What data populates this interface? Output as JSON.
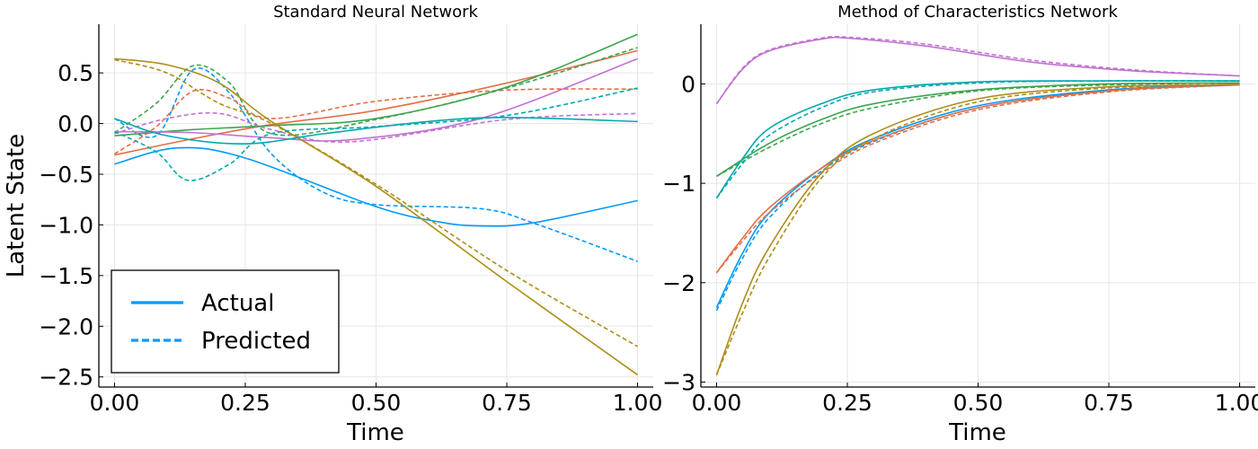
{
  "chart_data": [
    {
      "type": "line",
      "title": "Standard Neural Network",
      "xlabel": "Time",
      "ylabel": "Latent State",
      "xlim": [
        -0.03,
        1.03
      ],
      "ylim": [
        -2.6,
        0.98
      ],
      "xticks": [
        0,
        0.25,
        0.5,
        0.75,
        1.0
      ],
      "xtick_labels": [
        "0.00",
        "0.25",
        "0.50",
        "0.75",
        "1.00"
      ],
      "yticks": [
        -2.5,
        -2.0,
        -1.5,
        -1.0,
        -0.5,
        0.0,
        0.5
      ],
      "ytick_labels": [
        "−2.5",
        "−2.0",
        "−1.5",
        "−1.0",
        "−0.5",
        "0.0",
        "0.5"
      ],
      "grid": true,
      "legend": {
        "position": "bottom-left",
        "entries": [
          {
            "label": "Actual",
            "style": "solid"
          },
          {
            "label": "Predicted",
            "style": "dashed"
          }
        ]
      },
      "series": [
        {
          "color": "#009AFA",
          "actual": [
            [
              0,
              -0.4
            ],
            [
              0.12,
              -0.24
            ],
            [
              0.25,
              -0.34
            ],
            [
              0.5,
              -0.82
            ],
            [
              0.62,
              -0.97
            ],
            [
              0.7,
              -1.01
            ],
            [
              0.8,
              -0.98
            ],
            [
              1.0,
              -0.76
            ]
          ],
          "predicted": [
            [
              0,
              0.05
            ],
            [
              0.08,
              -0.12
            ],
            [
              0.15,
              0.53
            ],
            [
              0.22,
              0.3
            ],
            [
              0.3,
              -0.3
            ],
            [
              0.4,
              -0.68
            ],
            [
              0.5,
              -0.8
            ],
            [
              0.7,
              -0.84
            ],
            [
              0.8,
              -0.98
            ],
            [
              1.0,
              -1.36
            ]
          ]
        },
        {
          "color": "#E36F47",
          "actual": [
            [
              0,
              -0.31
            ],
            [
              0.15,
              -0.15
            ],
            [
              0.3,
              -0.01
            ],
            [
              0.5,
              0.13
            ],
            [
              0.75,
              0.4
            ],
            [
              1.0,
              0.72
            ]
          ],
          "predicted": [
            [
              0,
              -0.3
            ],
            [
              0.08,
              -0.03
            ],
            [
              0.15,
              0.32
            ],
            [
              0.22,
              0.25
            ],
            [
              0.3,
              0.05
            ],
            [
              0.5,
              0.22
            ],
            [
              0.75,
              0.33
            ],
            [
              1.0,
              0.34
            ]
          ]
        },
        {
          "color": "#3DA44D",
          "actual": [
            [
              0,
              -0.12
            ],
            [
              0.15,
              -0.06
            ],
            [
              0.3,
              -0.02
            ],
            [
              0.5,
              0.05
            ],
            [
              0.75,
              0.36
            ],
            [
              1.0,
              0.88
            ]
          ],
          "predicted": [
            [
              0,
              -0.09
            ],
            [
              0.08,
              0.2
            ],
            [
              0.15,
              0.57
            ],
            [
              0.22,
              0.4
            ],
            [
              0.3,
              -0.1
            ],
            [
              0.5,
              0.04
            ],
            [
              0.75,
              0.35
            ],
            [
              1.0,
              0.75
            ]
          ]
        },
        {
          "color": "#C271D2",
          "actual": [
            [
              0,
              -0.08
            ],
            [
              0.15,
              -0.09
            ],
            [
              0.3,
              -0.14
            ],
            [
              0.45,
              -0.16
            ],
            [
              0.7,
              0.05
            ],
            [
              1.0,
              0.64
            ]
          ],
          "predicted": [
            [
              0,
              -0.1
            ],
            [
              0.1,
              0.05
            ],
            [
              0.2,
              0.1
            ],
            [
              0.3,
              -0.06
            ],
            [
              0.45,
              -0.18
            ],
            [
              0.75,
              0.04
            ],
            [
              1.0,
              0.1
            ]
          ]
        },
        {
          "color": "#AC8E18",
          "actual": [
            [
              0,
              0.64
            ],
            [
              0.1,
              0.58
            ],
            [
              0.2,
              0.4
            ],
            [
              0.3,
              0.02
            ],
            [
              0.5,
              -0.62
            ],
            [
              0.75,
              -1.56
            ],
            [
              1.0,
              -2.48
            ]
          ],
          "predicted": [
            [
              0,
              0.63
            ],
            [
              0.1,
              0.5
            ],
            [
              0.2,
              0.2
            ],
            [
              0.3,
              0.0
            ],
            [
              0.5,
              -0.6
            ],
            [
              0.75,
              -1.45
            ],
            [
              1.0,
              -2.2
            ]
          ]
        },
        {
          "color": "#00A9AD",
          "actual": [
            [
              0,
              0.05
            ],
            [
              0.1,
              -0.12
            ],
            [
              0.25,
              -0.2
            ],
            [
              0.4,
              -0.1
            ],
            [
              0.6,
              0.02
            ],
            [
              0.75,
              0.06
            ],
            [
              1.0,
              0.02
            ]
          ],
          "predicted": [
            [
              0,
              -0.08
            ],
            [
              0.08,
              -0.28
            ],
            [
              0.14,
              -0.56
            ],
            [
              0.22,
              -0.4
            ],
            [
              0.3,
              -0.1
            ],
            [
              0.5,
              -0.03
            ],
            [
              0.75,
              0.08
            ],
            [
              1.0,
              0.35
            ]
          ]
        }
      ]
    },
    {
      "type": "line",
      "title": "Method of Characteristics Network",
      "xlabel": "Time",
      "ylabel": "",
      "xlim": [
        -0.03,
        1.03
      ],
      "ylim": [
        -3.05,
        0.6
      ],
      "xticks": [
        0,
        0.25,
        0.5,
        0.75,
        1.0
      ],
      "xtick_labels": [
        "0.00",
        "0.25",
        "0.50",
        "0.75",
        "1.00"
      ],
      "yticks": [
        -3,
        -2,
        -1,
        0
      ],
      "ytick_labels": [
        "−3",
        "−2",
        "−1",
        "0"
      ],
      "grid": true,
      "series": [
        {
          "color": "#009AFA",
          "actual": [
            [
              0,
              -2.25
            ],
            [
              0.05,
              -1.7
            ],
            [
              0.1,
              -1.3
            ],
            [
              0.2,
              -0.85
            ],
            [
              0.3,
              -0.55
            ],
            [
              0.5,
              -0.22
            ],
            [
              0.75,
              -0.06
            ],
            [
              1.0,
              0.0
            ]
          ],
          "predicted": [
            [
              0,
              -2.28
            ],
            [
              0.05,
              -1.75
            ],
            [
              0.1,
              -1.35
            ],
            [
              0.2,
              -0.88
            ],
            [
              0.3,
              -0.58
            ],
            [
              0.5,
              -0.24
            ],
            [
              0.75,
              -0.07
            ],
            [
              1.0,
              -0.01
            ]
          ]
        },
        {
          "color": "#E36F47",
          "actual": [
            [
              0,
              -1.9
            ],
            [
              0.05,
              -1.55
            ],
            [
              0.1,
              -1.25
            ],
            [
              0.2,
              -0.85
            ],
            [
              0.3,
              -0.57
            ],
            [
              0.5,
              -0.24
            ],
            [
              0.75,
              -0.07
            ],
            [
              1.0,
              0.0
            ]
          ],
          "predicted": [
            [
              0,
              -1.9
            ],
            [
              0.05,
              -1.58
            ],
            [
              0.1,
              -1.3
            ],
            [
              0.2,
              -0.9
            ],
            [
              0.3,
              -0.6
            ],
            [
              0.5,
              -0.26
            ],
            [
              0.75,
              -0.08
            ],
            [
              1.0,
              -0.01
            ]
          ]
        },
        {
          "color": "#3DA44D",
          "actual": [
            [
              0,
              -0.93
            ],
            [
              0.1,
              -0.6
            ],
            [
              0.2,
              -0.36
            ],
            [
              0.3,
              -0.2
            ],
            [
              0.5,
              -0.06
            ],
            [
              0.75,
              0.0
            ],
            [
              1.0,
              0.01
            ]
          ],
          "predicted": [
            [
              0,
              -0.93
            ],
            [
              0.1,
              -0.64
            ],
            [
              0.2,
              -0.4
            ],
            [
              0.3,
              -0.24
            ],
            [
              0.5,
              -0.07
            ],
            [
              0.75,
              -0.01
            ],
            [
              1.0,
              0.01
            ]
          ]
        },
        {
          "color": "#C271D2",
          "actual": [
            [
              0,
              -0.2
            ],
            [
              0.05,
              0.15
            ],
            [
              0.1,
              0.33
            ],
            [
              0.2,
              0.45
            ],
            [
              0.25,
              0.46
            ],
            [
              0.4,
              0.38
            ],
            [
              0.6,
              0.22
            ],
            [
              0.8,
              0.13
            ],
            [
              1.0,
              0.08
            ]
          ],
          "predicted": [
            [
              0,
              -0.2
            ],
            [
              0.05,
              0.16
            ],
            [
              0.1,
              0.34
            ],
            [
              0.2,
              0.46
            ],
            [
              0.25,
              0.47
            ],
            [
              0.4,
              0.4
            ],
            [
              0.6,
              0.24
            ],
            [
              0.8,
              0.14
            ],
            [
              1.0,
              0.08
            ]
          ]
        },
        {
          "color": "#AC8E18",
          "actual": [
            [
              0,
              -2.93
            ],
            [
              0.05,
              -2.2
            ],
            [
              0.1,
              -1.65
            ],
            [
              0.2,
              -0.9
            ],
            [
              0.3,
              -0.5
            ],
            [
              0.5,
              -0.15
            ],
            [
              0.75,
              -0.03
            ],
            [
              1.0,
              -0.01
            ]
          ],
          "predicted": [
            [
              0,
              -2.93
            ],
            [
              0.05,
              -2.3
            ],
            [
              0.1,
              -1.75
            ],
            [
              0.2,
              -0.95
            ],
            [
              0.3,
              -0.55
            ],
            [
              0.5,
              -0.18
            ],
            [
              0.75,
              -0.04
            ],
            [
              1.0,
              -0.01
            ]
          ]
        },
        {
          "color": "#00A9AD",
          "actual": [
            [
              0,
              -1.15
            ],
            [
              0.05,
              -0.75
            ],
            [
              0.1,
              -0.45
            ],
            [
              0.2,
              -0.2
            ],
            [
              0.3,
              -0.06
            ],
            [
              0.5,
              0.02
            ],
            [
              0.75,
              0.03
            ],
            [
              1.0,
              0.03
            ]
          ],
          "predicted": [
            [
              0,
              -1.15
            ],
            [
              0.05,
              -0.8
            ],
            [
              0.1,
              -0.52
            ],
            [
              0.2,
              -0.24
            ],
            [
              0.3,
              -0.08
            ],
            [
              0.5,
              0.01
            ],
            [
              0.75,
              0.03
            ],
            [
              1.0,
              0.03
            ]
          ]
        }
      ]
    }
  ]
}
